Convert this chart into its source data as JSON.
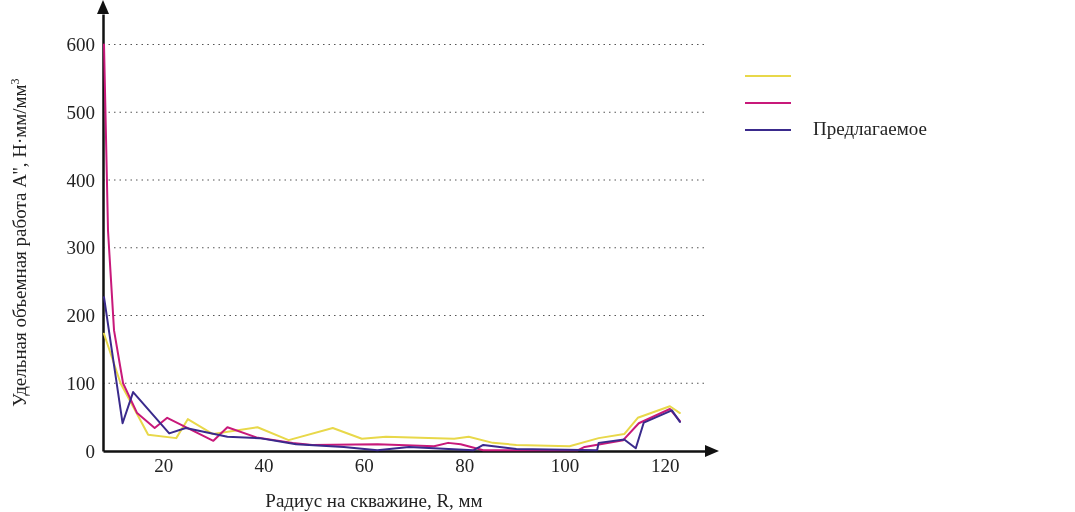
{
  "chart_data": {
    "type": "line",
    "xlabel": "Радиус на скважине, R, мм",
    "ylabel": "Удельная объемная работа А'', Н·мм/мм$^{3}$",
    "xlim": [
      8,
      128
    ],
    "xticks": [
      20,
      40,
      60,
      80,
      100,
      120
    ],
    "ylim": [
      0,
      645
    ],
    "yticks": [
      0,
      100,
      200,
      300,
      400,
      500,
      600
    ],
    "grid": "y",
    "legend": "top right",
    "line_style": "solid",
    "marker": "none",
    "series": [
      {
        "color": "#e8d84a",
        "x": [
          8.2,
          11.5,
          17,
          22.6,
          24.9,
          29.9,
          38.8,
          45,
          53.8,
          59.6,
          64.4,
          78,
          80.9,
          85.7,
          90.4,
          101,
          106.8,
          111.9,
          114.6,
          121,
          123
        ],
        "values": [
          173,
          100,
          24,
          19,
          47,
          25,
          35,
          16,
          34,
          18,
          21,
          18,
          21,
          12,
          9,
          7,
          19,
          25,
          49,
          66,
          56
        ]
      },
      {
        "color": "#c8197a",
        "x": [
          8.2,
          9,
          10.2,
          12,
          14.8,
          18.3,
          20.8,
          30,
          32.8,
          38.6,
          45.8,
          49.7,
          62.7,
          74,
          76.8,
          79.3,
          83.8,
          102.6,
          104,
          111.7,
          114.8,
          121,
          123
        ],
        "values": [
          600,
          325,
          178,
          100,
          56,
          34,
          49,
          15,
          35,
          20,
          12,
          9,
          10,
          7,
          12,
          10,
          1,
          1,
          6,
          16,
          41,
          62,
          44
        ]
      },
      {
        "name": "Предлагаемое",
        "color": "#3a2a8c",
        "x": [
          8.2,
          11.9,
          14,
          21.2,
          24.5,
          32.8,
          39.2,
          46.5,
          56,
          62.7,
          69,
          81.8,
          83.8,
          90.4,
          106.5,
          106.8,
          111.9,
          114.2,
          115.8,
          121.4,
          123
        ],
        "values": [
          227,
          41,
          87,
          26,
          34,
          21,
          19,
          10,
          6,
          1,
          6,
          1,
          9,
          3,
          1,
          12,
          17,
          4,
          42,
          60,
          43
        ]
      }
    ]
  }
}
